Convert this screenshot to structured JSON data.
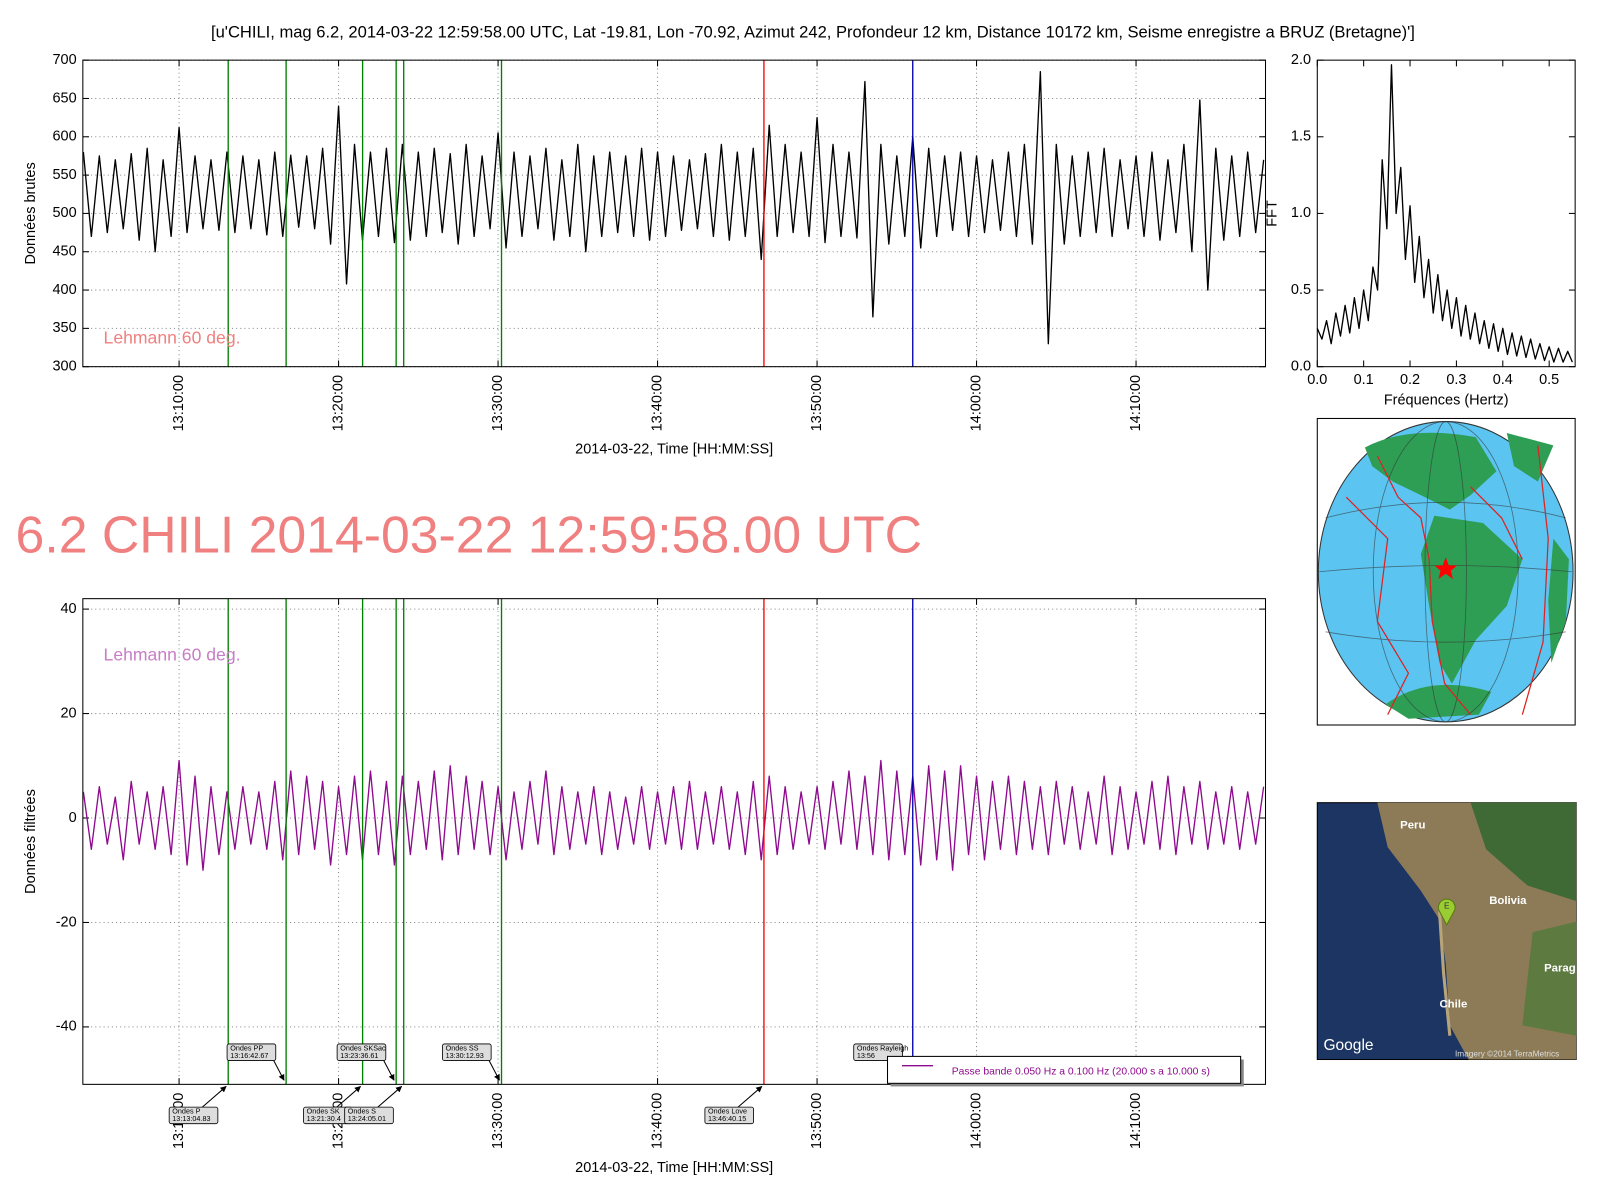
{
  "title": "[u'CHILI, mag 6.2, 2014-03-22 12:59:58.00 UTC, Lat -19.81, Lon -70.92, Azimut 242, Profondeur 12 km, Distance 10172 km, Seisme enregistre a BRUZ (Bretagne)']",
  "headline": "6.2 CHILI 2014-03-22 12:59:58.00 UTC",
  "chart_data": [
    {
      "type": "line",
      "x_time": true,
      "xtick_rotation": 90,
      "grid": true,
      "xlabel": "2014-03-22, Time [HH:MM:SS]",
      "ylabel": "Données brutes",
      "annotation": "Lehmann 60 deg.",
      "annotation_color": "#f08080",
      "xlim": [
        "13:03:58",
        "14:18:07"
      ],
      "xticks": [
        "13:10:00",
        "13:20:00",
        "13:30:00",
        "13:40:00",
        "13:50:00",
        "14:00:00",
        "14:10:00"
      ],
      "ylim": [
        300,
        700
      ],
      "yticks": [
        300,
        350,
        400,
        450,
        500,
        550,
        600,
        650,
        700
      ],
      "x": [
        "13:04:00",
        "13:04:30",
        "13:05:00",
        "13:05:30",
        "13:06:00",
        "13:06:30",
        "13:07:00",
        "13:07:30",
        "13:08:00",
        "13:08:30",
        "13:09:00",
        "13:09:30",
        "13:10:00",
        "13:10:30",
        "13:11:00",
        "13:11:30",
        "13:12:00",
        "13:12:30",
        "13:13:00",
        "13:13:30",
        "13:14:00",
        "13:14:30",
        "13:15:00",
        "13:15:30",
        "13:16:00",
        "13:16:30",
        "13:17:00",
        "13:17:30",
        "13:18:00",
        "13:18:30",
        "13:19:00",
        "13:19:30",
        "13:20:00",
        "13:20:30",
        "13:21:00",
        "13:21:30",
        "13:22:00",
        "13:22:30",
        "13:23:00",
        "13:23:30",
        "13:24:00",
        "13:24:30",
        "13:25:00",
        "13:25:30",
        "13:26:00",
        "13:26:30",
        "13:27:00",
        "13:27:30",
        "13:28:00",
        "13:28:30",
        "13:29:00",
        "13:29:30",
        "13:30:00",
        "13:30:30",
        "13:31:00",
        "13:31:30",
        "13:32:00",
        "13:32:30",
        "13:33:00",
        "13:33:30",
        "13:34:00",
        "13:34:30",
        "13:35:00",
        "13:35:30",
        "13:36:00",
        "13:36:30",
        "13:37:00",
        "13:37:30",
        "13:38:00",
        "13:38:30",
        "13:39:00",
        "13:39:30",
        "13:40:00",
        "13:40:30",
        "13:41:00",
        "13:41:30",
        "13:42:00",
        "13:42:30",
        "13:43:00",
        "13:43:30",
        "13:44:00",
        "13:44:30",
        "13:45:00",
        "13:45:30",
        "13:46:00",
        "13:46:30",
        "13:47:00",
        "13:47:30",
        "13:48:00",
        "13:48:30",
        "13:49:00",
        "13:49:30",
        "13:50:00",
        "13:50:30",
        "13:51:00",
        "13:51:30",
        "13:52:00",
        "13:52:30",
        "13:53:00",
        "13:53:30",
        "13:54:00",
        "13:54:30",
        "13:55:00",
        "13:55:30",
        "13:56:00",
        "13:56:30",
        "13:57:00",
        "13:57:30",
        "13:58:00",
        "13:58:30",
        "13:59:00",
        "13:59:30",
        "14:00:00",
        "14:00:30",
        "14:01:00",
        "14:01:30",
        "14:02:00",
        "14:02:30",
        "14:03:00",
        "14:03:30",
        "14:04:00",
        "14:04:30",
        "14:05:00",
        "14:05:30",
        "14:06:00",
        "14:06:30",
        "14:07:00",
        "14:07:30",
        "14:08:00",
        "14:08:30",
        "14:09:00",
        "14:09:30",
        "14:10:00",
        "14:10:30",
        "14:11:00",
        "14:11:30",
        "14:12:00",
        "14:12:30",
        "14:13:00",
        "14:13:30",
        "14:14:00",
        "14:14:30",
        "14:15:00",
        "14:15:30",
        "14:16:00",
        "14:16:30",
        "14:17:00",
        "14:17:30",
        "14:18:00"
      ],
      "series": [
        {
          "color": "#000000",
          "values": [
            580,
            470,
            575,
            475,
            570,
            480,
            578,
            465,
            585,
            450,
            570,
            470,
            612,
            475,
            575,
            480,
            570,
            478,
            580,
            475,
            575,
            480,
            570,
            472,
            580,
            470,
            576,
            482,
            575,
            480,
            585,
            460,
            640,
            408,
            590,
            465,
            580,
            470,
            585,
            462,
            590,
            465,
            580,
            470,
            585,
            475,
            578,
            460,
            590,
            470,
            575,
            480,
            605,
            455,
            580,
            470,
            575,
            480,
            585,
            465,
            570,
            470,
            590,
            450,
            575,
            470,
            580,
            475,
            575,
            470,
            585,
            465,
            580,
            470,
            575,
            478,
            570,
            480,
            578,
            470,
            590,
            465,
            580,
            470,
            585,
            440,
            615,
            470,
            590,
            475,
            580,
            470,
            625,
            462,
            590,
            470,
            580,
            468,
            672,
            365,
            590,
            460,
            575,
            470,
            600,
            455,
            585,
            470,
            575,
            478,
            580,
            470,
            575,
            475,
            570,
            478,
            580,
            470,
            590,
            460,
            685,
            330,
            590,
            460,
            575,
            470,
            580,
            475,
            585,
            470,
            570,
            480,
            575,
            470,
            580,
            465,
            570,
            475,
            590,
            450,
            648,
            400,
            585,
            465,
            575,
            470,
            580,
            475,
            570
          ]
        }
      ]
    },
    {
      "type": "line",
      "xlabel": "Fréquences (Hertz)",
      "ylabel": "FFT",
      "xlim": [
        0,
        0.556
      ],
      "xticks": [
        {
          "value": 0,
          "label": "0.0"
        },
        0.1,
        0.2,
        0.3,
        0.4,
        0.5
      ],
      "ylim": [
        0,
        2
      ],
      "yticks": [
        {
          "value": 0,
          "label": "0.0"
        },
        0.5,
        {
          "value": 1,
          "label": "1.0"
        },
        1.5,
        {
          "value": 2,
          "label": "2.0"
        }
      ],
      "x": [
        0,
        0.01,
        0.02,
        0.03,
        0.04,
        0.05,
        0.06,
        0.07,
        0.08,
        0.09,
        0.1,
        0.11,
        0.12,
        0.13,
        0.14,
        0.15,
        0.16,
        0.17,
        0.18,
        0.19,
        0.2,
        0.21,
        0.22,
        0.23,
        0.24,
        0.25,
        0.26,
        0.27,
        0.28,
        0.29,
        0.3,
        0.31,
        0.32,
        0.33,
        0.34,
        0.35,
        0.36,
        0.37,
        0.38,
        0.39,
        0.4,
        0.41,
        0.42,
        0.43,
        0.44,
        0.45,
        0.46,
        0.47,
        0.48,
        0.49,
        0.5,
        0.51,
        0.52,
        0.53,
        0.54,
        0.55
      ],
      "series": [
        {
          "color": "#000000",
          "values": [
            0.25,
            0.18,
            0.3,
            0.15,
            0.35,
            0.2,
            0.4,
            0.22,
            0.45,
            0.25,
            0.5,
            0.3,
            0.65,
            0.5,
            1.35,
            0.9,
            1.97,
            1.0,
            1.3,
            0.7,
            1.05,
            0.55,
            0.85,
            0.45,
            0.7,
            0.35,
            0.6,
            0.3,
            0.5,
            0.25,
            0.45,
            0.2,
            0.4,
            0.18,
            0.35,
            0.15,
            0.3,
            0.12,
            0.28,
            0.1,
            0.25,
            0.08,
            0.22,
            0.07,
            0.2,
            0.06,
            0.18,
            0.05,
            0.15,
            0.04,
            0.13,
            0.03,
            0.12,
            0.03,
            0.1,
            0.03
          ]
        }
      ]
    },
    {
      "type": "line",
      "x_time": true,
      "xtick_rotation": 90,
      "grid": true,
      "legend": "lower right",
      "xlabel": "2014-03-22, Time [HH:MM:SS]",
      "ylabel": "Données filtrées",
      "annotation": "Lehmann 60 deg.",
      "annotation_color": "#c77dc7",
      "xlim": [
        "13:03:58",
        "14:18:07"
      ],
      "xticks": [
        "13:10:00",
        "13:20:00",
        "13:30:00",
        "13:40:00",
        "13:50:00",
        "14:00:00",
        "14:10:00"
      ],
      "ylim": [
        -51,
        42
      ],
      "yticks": [
        -40,
        -20,
        0,
        20,
        40
      ],
      "x": [
        "13:04:00",
        "13:04:30",
        "13:05:00",
        "13:05:30",
        "13:06:00",
        "13:06:30",
        "13:07:00",
        "13:07:30",
        "13:08:00",
        "13:08:30",
        "13:09:00",
        "13:09:30",
        "13:10:00",
        "13:10:30",
        "13:11:00",
        "13:11:30",
        "13:12:00",
        "13:12:30",
        "13:13:00",
        "13:13:30",
        "13:14:00",
        "13:14:30",
        "13:15:00",
        "13:15:30",
        "13:16:00",
        "13:16:30",
        "13:17:00",
        "13:17:30",
        "13:18:00",
        "13:18:30",
        "13:19:00",
        "13:19:30",
        "13:20:00",
        "13:20:30",
        "13:21:00",
        "13:21:30",
        "13:22:00",
        "13:22:30",
        "13:23:00",
        "13:23:30",
        "13:24:00",
        "13:24:30",
        "13:25:00",
        "13:25:30",
        "13:26:00",
        "13:26:30",
        "13:27:00",
        "13:27:30",
        "13:28:00",
        "13:28:30",
        "13:29:00",
        "13:29:30",
        "13:30:00",
        "13:30:30",
        "13:31:00",
        "13:31:30",
        "13:32:00",
        "13:32:30",
        "13:33:00",
        "13:33:30",
        "13:34:00",
        "13:34:30",
        "13:35:00",
        "13:35:30",
        "13:36:00",
        "13:36:30",
        "13:37:00",
        "13:37:30",
        "13:38:00",
        "13:38:30",
        "13:39:00",
        "13:39:30",
        "13:40:00",
        "13:40:30",
        "13:41:00",
        "13:41:30",
        "13:42:00",
        "13:42:30",
        "13:43:00",
        "13:43:30",
        "13:44:00",
        "13:44:30",
        "13:45:00",
        "13:45:30",
        "13:46:00",
        "13:46:30",
        "13:47:00",
        "13:47:30",
        "13:48:00",
        "13:48:30",
        "13:49:00",
        "13:49:30",
        "13:50:00",
        "13:50:30",
        "13:51:00",
        "13:51:30",
        "13:52:00",
        "13:52:30",
        "13:53:00",
        "13:53:30",
        "13:54:00",
        "13:54:30",
        "13:55:00",
        "13:55:30",
        "13:56:00",
        "13:56:30",
        "13:57:00",
        "13:57:30",
        "13:58:00",
        "13:58:30",
        "13:59:00",
        "13:59:30",
        "14:00:00",
        "14:00:30",
        "14:01:00",
        "14:01:30",
        "14:02:00",
        "14:02:30",
        "14:03:00",
        "14:03:30",
        "14:04:00",
        "14:04:30",
        "14:05:00",
        "14:05:30",
        "14:06:00",
        "14:06:30",
        "14:07:00",
        "14:07:30",
        "14:08:00",
        "14:08:30",
        "14:09:00",
        "14:09:30",
        "14:10:00",
        "14:10:30",
        "14:11:00",
        "14:11:30",
        "14:12:00",
        "14:12:30",
        "14:13:00",
        "14:13:30",
        "14:14:00",
        "14:14:30",
        "14:15:00",
        "14:15:30",
        "14:16:00",
        "14:16:30",
        "14:17:00",
        "14:17:30",
        "14:18:00"
      ],
      "series": [
        {
          "name": "Passe bande 0.050 Hz a 0.100 Hz (20.000 s a 10.000 s)",
          "color": "#8e0a8e",
          "values": [
            5,
            -6,
            6,
            -5,
            4,
            -8,
            7,
            -5,
            5,
            -6,
            6,
            -7,
            11,
            -9,
            8,
            -10,
            6,
            -7,
            5,
            -6,
            6,
            -5,
            5,
            -6,
            7,
            -8,
            9,
            -7,
            8,
            -6,
            7,
            -9,
            6,
            -7,
            8,
            -8,
            9,
            -7,
            7,
            -9,
            8,
            -7,
            7,
            -6,
            9,
            -8,
            10,
            -7,
            8,
            -6,
            7,
            -7,
            6,
            -8,
            5,
            -6,
            7,
            -5,
            9,
            -7,
            6,
            -6,
            5,
            -5,
            6,
            -7,
            5,
            -6,
            4,
            -5,
            6,
            -6,
            5,
            -5,
            6,
            -6,
            7,
            -6,
            5,
            -5,
            6,
            -6,
            5,
            -7,
            7,
            -8,
            8,
            -7,
            6,
            -6,
            5,
            -5,
            6,
            -6,
            7,
            -5,
            9,
            -6,
            8,
            -7,
            11,
            -8,
            9,
            -7,
            8,
            -9,
            10,
            -8,
            9,
            -10,
            10,
            -7,
            8,
            -8,
            7,
            -6,
            8,
            -7,
            7,
            -6,
            6,
            -7,
            7,
            -5,
            6,
            -6,
            5,
            -5,
            8,
            -7,
            6,
            -6,
            5,
            -5,
            7,
            -6,
            8,
            -7,
            6,
            -5,
            7,
            -6,
            5,
            -5,
            6,
            -6,
            5,
            -5,
            6
          ]
        }
      ],
      "phases": [
        {
          "name": "Ondes P",
          "time": "13:13:04.83",
          "color": "#008000",
          "side": "below"
        },
        {
          "name": "Ondes PP",
          "time": "13:16:42.67",
          "color": "#008000",
          "side": "above"
        },
        {
          "name": "Ondes SK",
          "time": "13:21:30.4",
          "color": "#008000",
          "side": "below"
        },
        {
          "name": "Ondes SKSac",
          "time": "13:23:36.61",
          "color": "#008000",
          "side": "above"
        },
        {
          "name": "Ondes S",
          "time": "13:24:05.01",
          "color": "#008000",
          "side": "below"
        },
        {
          "name": "Ondes SS",
          "time": "13:30:12.93",
          "color": "#008000",
          "side": "above"
        },
        {
          "name": "Ondes Love",
          "time": "13:46:40.15",
          "color": "#ff0000",
          "side": "below"
        },
        {
          "name": "Ondes Rayleigh",
          "time": "13:56",
          "color": "#0000aa",
          "side": "above"
        }
      ]
    }
  ],
  "map": {
    "labels": [
      "Peru",
      "Bolivia",
      "Parag",
      "Chile"
    ],
    "pin": "E",
    "logo": "Google",
    "credit": "Imagery ©2014 TerraMetrics"
  }
}
